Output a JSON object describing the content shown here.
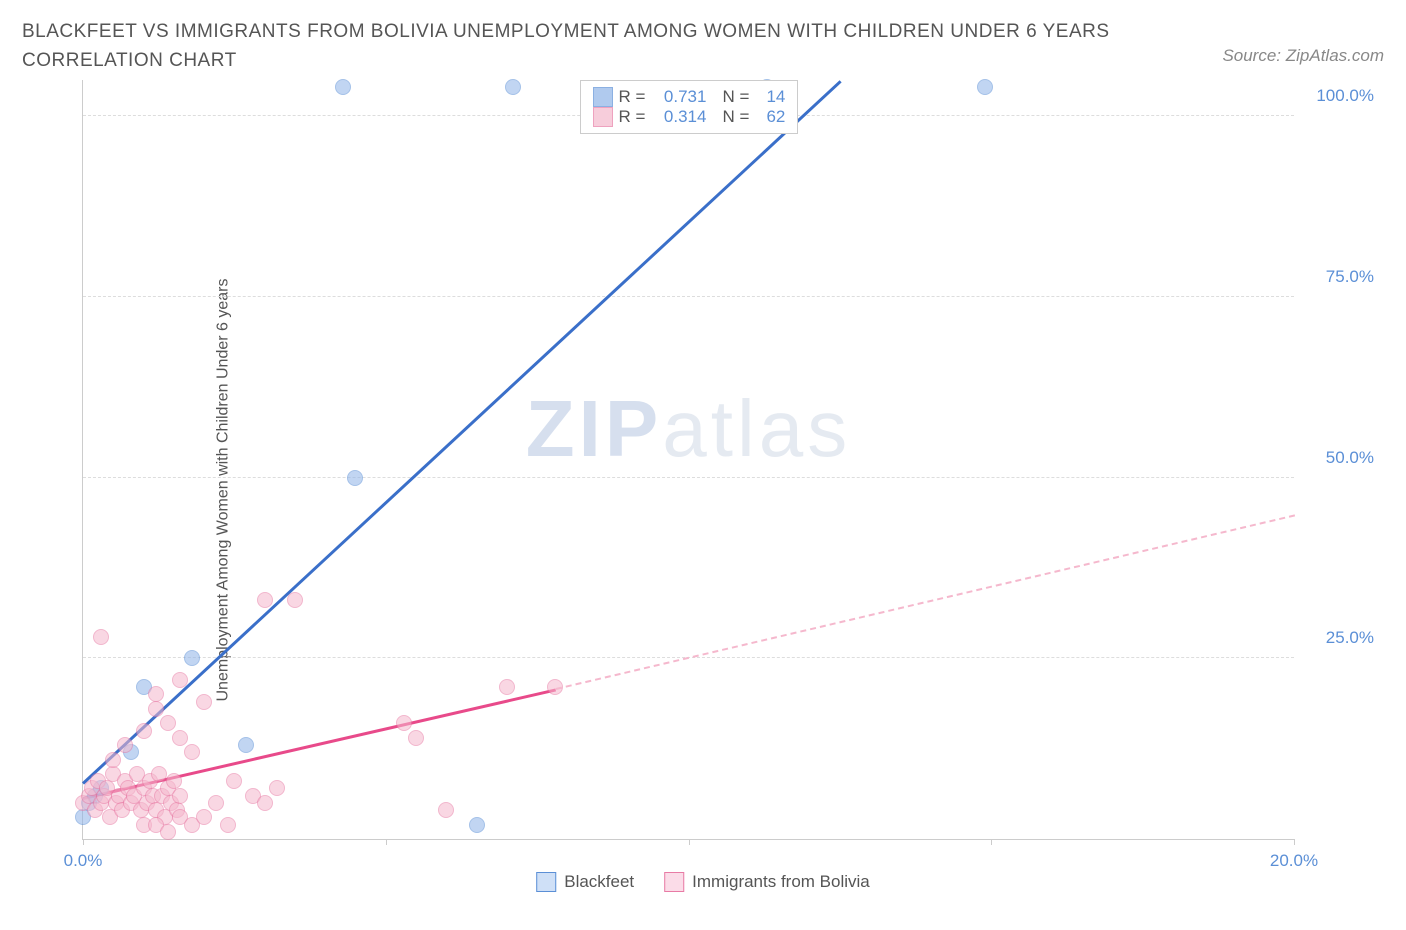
{
  "title": "BLACKFEET VS IMMIGRANTS FROM BOLIVIA UNEMPLOYMENT AMONG WOMEN WITH CHILDREN UNDER 6 YEARS CORRELATION CHART",
  "source": "Source: ZipAtlas.com",
  "ylabel": "Unemployment Among Women with Children Under 6 years",
  "watermark_bold": "ZIP",
  "watermark_light": "atlas",
  "chart": {
    "type": "scatter-with-trend",
    "xlim": [
      0,
      20
    ],
    "ylim": [
      0,
      105
    ],
    "x_ticks": [
      0,
      5,
      10,
      15,
      20
    ],
    "x_tick_labels": {
      "0": "0.0%",
      "20": "20.0%"
    },
    "y_ticks": [
      25,
      50,
      75,
      100
    ],
    "y_tick_labels": {
      "25": "25.0%",
      "50": "50.0%",
      "75": "75.0%",
      "100": "100.0%"
    },
    "background_color": "#ffffff",
    "grid_color": "#dddddd",
    "axis_color": "#cccccc",
    "tick_label_color": "#5b8fd6",
    "point_radius": 8,
    "point_opacity": 0.55,
    "series": [
      {
        "name": "Blackfeet",
        "color": "#8fb4e8",
        "stroke": "#5b8fd6",
        "trend_color": "#3a6fc9",
        "r_value": "0.731",
        "n_value": "14",
        "trend": {
          "x1": 0,
          "y1": 8,
          "x2": 12.5,
          "y2": 105,
          "dashed_extension": false
        },
        "points": [
          [
            0.0,
            3
          ],
          [
            0.1,
            5
          ],
          [
            0.2,
            6
          ],
          [
            0.3,
            7
          ],
          [
            0.8,
            12
          ],
          [
            1.0,
            21
          ],
          [
            1.8,
            25
          ],
          [
            2.7,
            13
          ],
          [
            4.5,
            50
          ],
          [
            4.3,
            104
          ],
          [
            6.5,
            2
          ],
          [
            7.1,
            104
          ],
          [
            11.3,
            104
          ],
          [
            14.9,
            104
          ]
        ]
      },
      {
        "name": "Immigrants from Bolivia",
        "color": "#f5b8cd",
        "stroke": "#e87ba5",
        "trend_color": "#e84a8a",
        "r_value": "0.314",
        "n_value": "62",
        "trend": {
          "x1": 0,
          "y1": 6,
          "x2": 7.8,
          "y2": 21,
          "dashed_extension": true,
          "dx2": 20,
          "dy2": 45
        },
        "points": [
          [
            0.0,
            5
          ],
          [
            0.1,
            6
          ],
          [
            0.15,
            7
          ],
          [
            0.2,
            4
          ],
          [
            0.25,
            8
          ],
          [
            0.3,
            5
          ],
          [
            0.35,
            6
          ],
          [
            0.4,
            7
          ],
          [
            0.45,
            3
          ],
          [
            0.5,
            9
          ],
          [
            0.55,
            5
          ],
          [
            0.6,
            6
          ],
          [
            0.65,
            4
          ],
          [
            0.7,
            8
          ],
          [
            0.75,
            7
          ],
          [
            0.8,
            5
          ],
          [
            0.85,
            6
          ],
          [
            0.9,
            9
          ],
          [
            0.95,
            4
          ],
          [
            1.0,
            7
          ],
          [
            1.05,
            5
          ],
          [
            1.1,
            8
          ],
          [
            1.15,
            6
          ],
          [
            1.2,
            4
          ],
          [
            1.25,
            9
          ],
          [
            1.3,
            6
          ],
          [
            1.35,
            3
          ],
          [
            1.4,
            7
          ],
          [
            1.45,
            5
          ],
          [
            1.5,
            8
          ],
          [
            1.55,
            4
          ],
          [
            1.6,
            6
          ],
          [
            1.0,
            2
          ],
          [
            1.2,
            2
          ],
          [
            1.4,
            1
          ],
          [
            1.6,
            3
          ],
          [
            1.8,
            2
          ],
          [
            2.0,
            3
          ],
          [
            2.2,
            5
          ],
          [
            2.4,
            2
          ],
          [
            0.5,
            11
          ],
          [
            0.7,
            13
          ],
          [
            1.0,
            15
          ],
          [
            1.2,
            18
          ],
          [
            1.4,
            16
          ],
          [
            1.6,
            14
          ],
          [
            1.8,
            12
          ],
          [
            0.3,
            28
          ],
          [
            1.2,
            20
          ],
          [
            1.6,
            22
          ],
          [
            2.0,
            19
          ],
          [
            2.5,
            8
          ],
          [
            2.8,
            6
          ],
          [
            3.0,
            5
          ],
          [
            3.2,
            7
          ],
          [
            3.0,
            33
          ],
          [
            3.5,
            33
          ],
          [
            5.3,
            16
          ],
          [
            5.5,
            14
          ],
          [
            6.0,
            4
          ],
          [
            7.0,
            21
          ],
          [
            7.8,
            21
          ]
        ]
      }
    ]
  },
  "legend_top": {
    "r_label": "R =",
    "n_label": "N ="
  },
  "legend_bottom": [
    {
      "label": "Blackfeet",
      "fill": "#cfe0f7",
      "stroke": "#5b8fd6"
    },
    {
      "label": "Immigrants from Bolivia",
      "fill": "#fbdce8",
      "stroke": "#e87ba5"
    }
  ]
}
